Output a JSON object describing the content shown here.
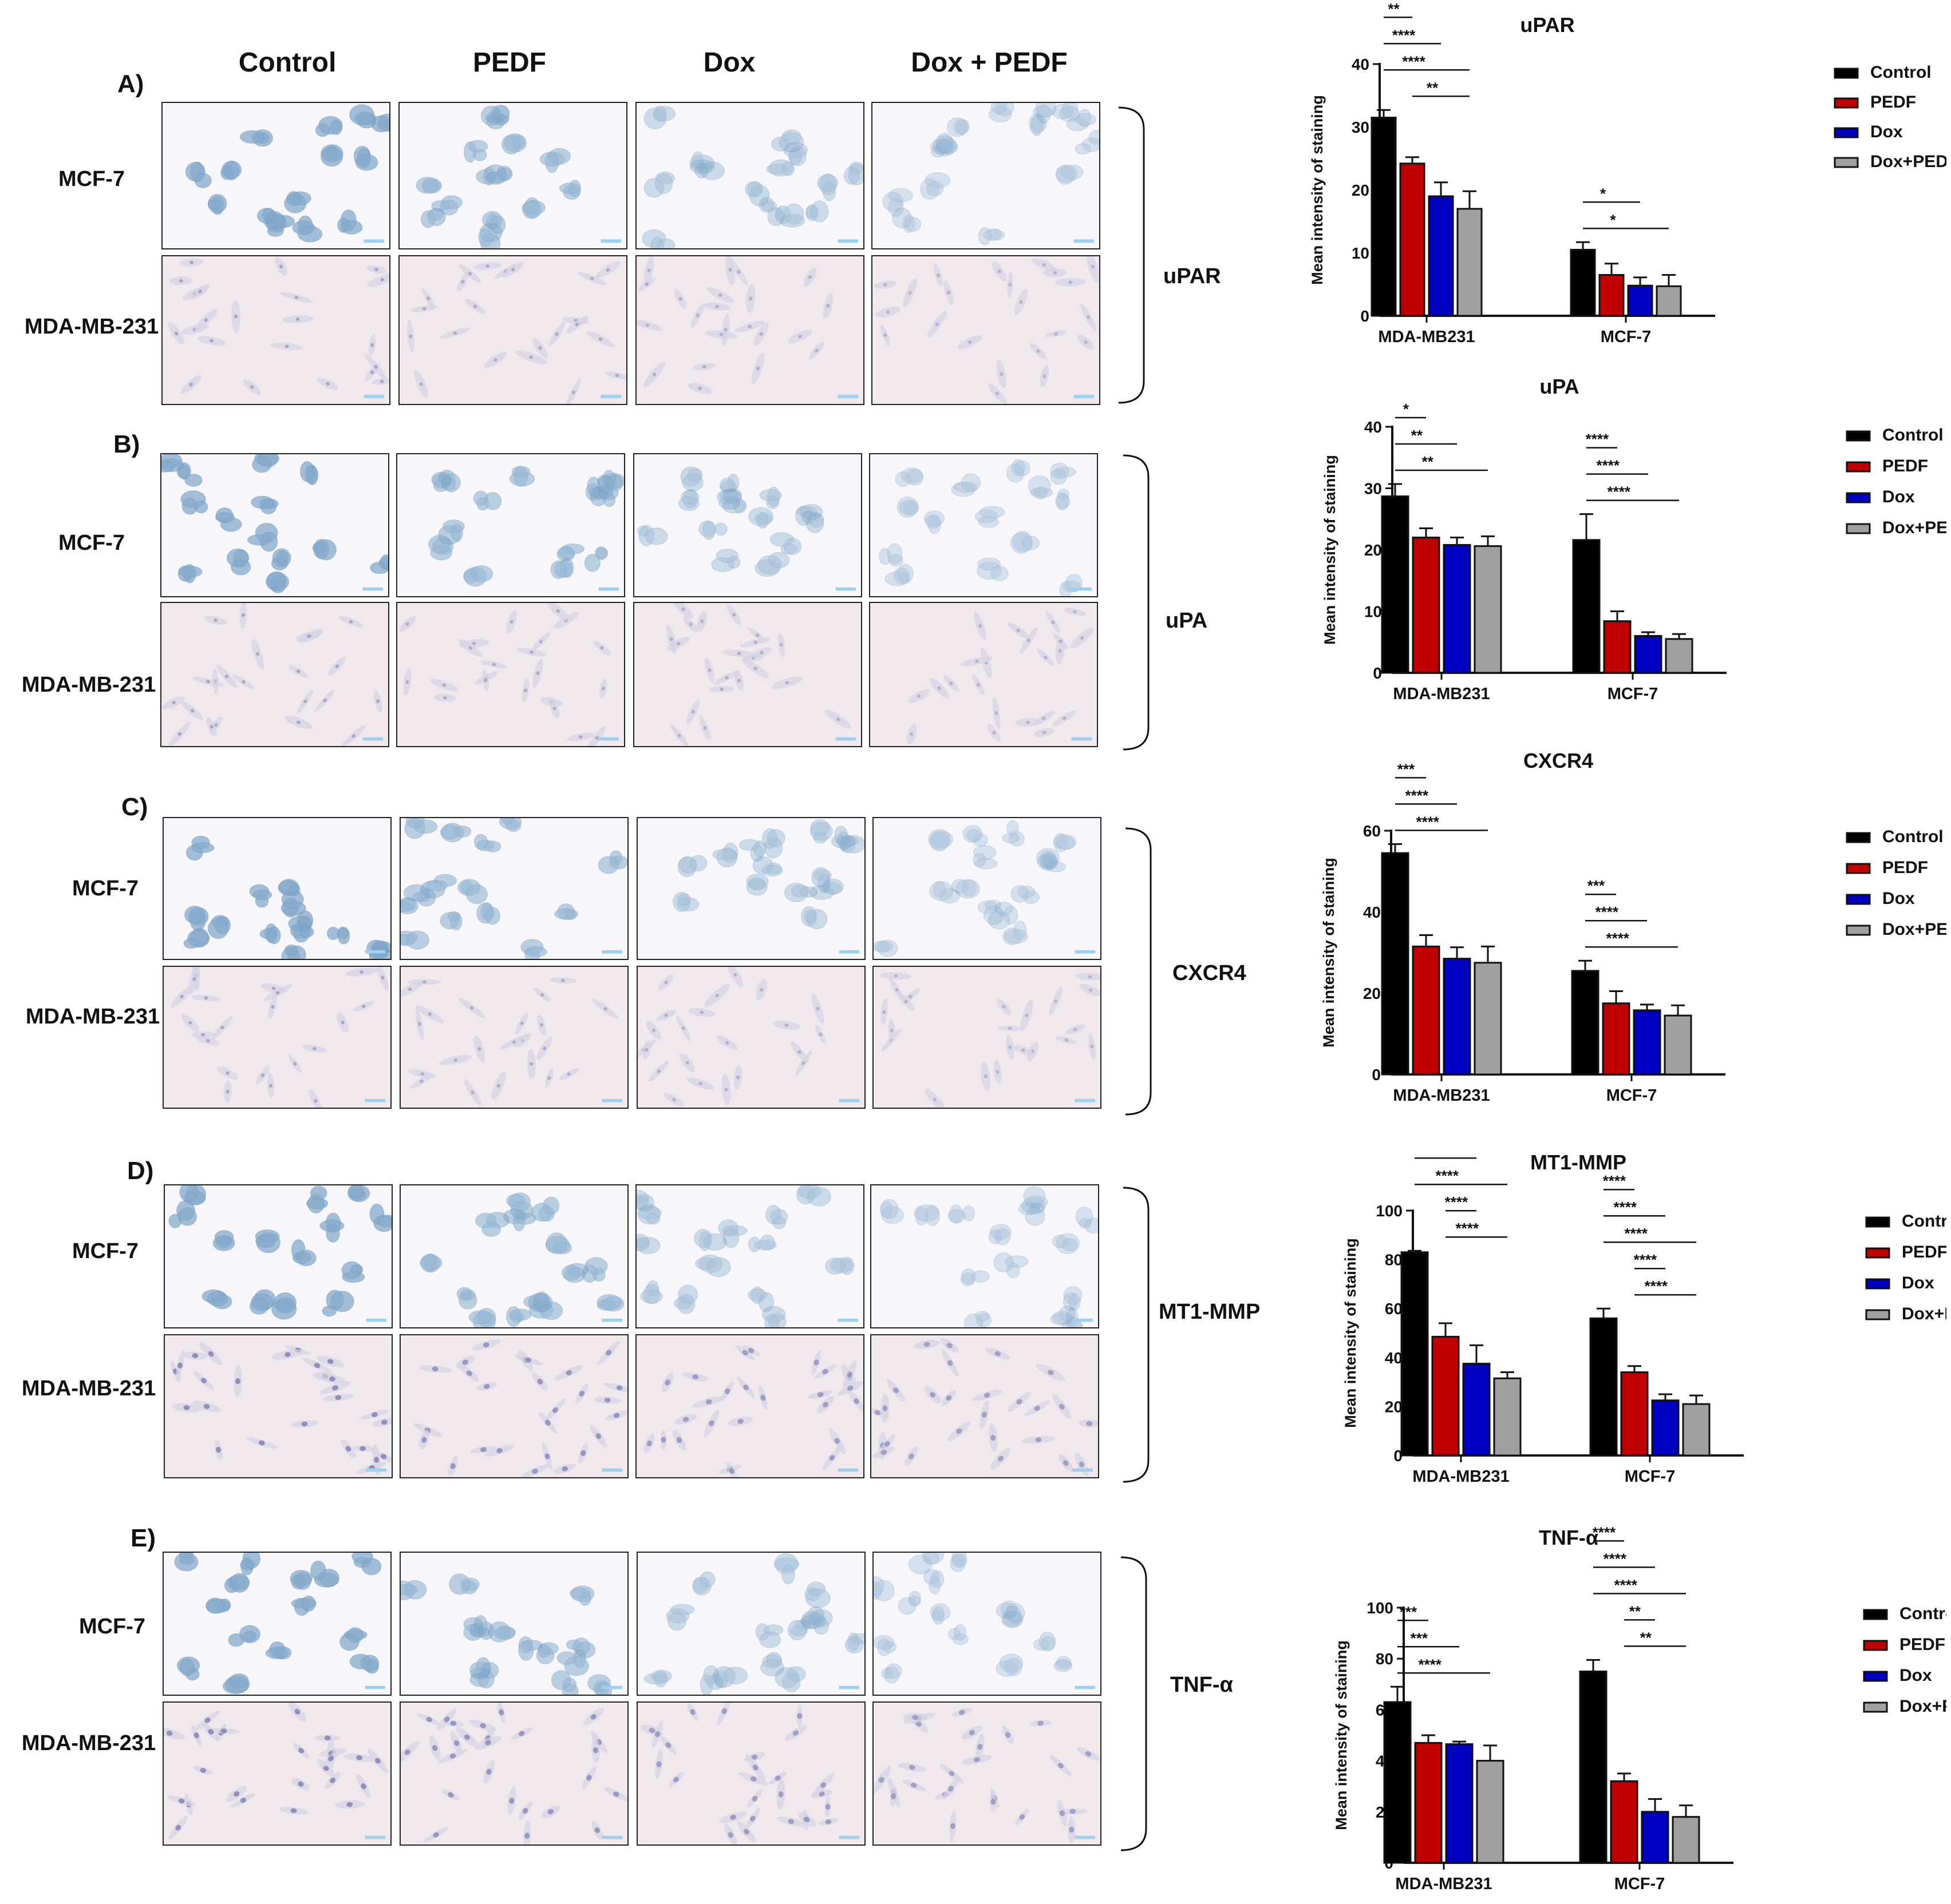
{
  "figure": {
    "column_headers": [
      "Control",
      "PEDF",
      "Dox",
      "Dox + PEDF"
    ],
    "panels": [
      {
        "letter": "A)",
        "marker": "uPAR",
        "rows": [
          "MCF-7",
          "MDA-MB-231"
        ]
      },
      {
        "letter": "B)",
        "marker": "uPA",
        "rows": [
          "MCF-7",
          "MDA-MB-231"
        ]
      },
      {
        "letter": "C)",
        "marker": "CXCR4",
        "rows": [
          "MCF-7",
          "MDA-MB-231"
        ]
      },
      {
        "letter": "D)",
        "marker": "MT1-MMP",
        "rows": [
          "MCF-7",
          "MDA-MB-231"
        ]
      },
      {
        "letter": "E)",
        "marker": "TNF-α",
        "rows": [
          "MCF-7",
          "MDA-MB-231"
        ]
      }
    ],
    "colors": {
      "control": "#000000",
      "pedf": "#c00000",
      "dox": "#0000c0",
      "doxpedf": "#a0a0a0",
      "mcf7_stain": "#7fa6c9",
      "mda_bg": "#f1e8ee",
      "mda_cell": "#8a8cb8"
    }
  },
  "chart_data": [
    {
      "type": "bar",
      "title": "uPAR",
      "ylabel": "Mean intensity of staining",
      "xlabel": "",
      "categories": [
        "MDA-MB231",
        "MCF-7"
      ],
      "ylim": [
        0,
        40
      ],
      "yticks": [
        0,
        10,
        20,
        30,
        40
      ],
      "legend": [
        "Control",
        "PEDF",
        "Dox",
        "Dox+PEDF"
      ],
      "legend_position": "right",
      "series": [
        {
          "name": "Control",
          "values": [
            31.5,
            10.5
          ],
          "errors": [
            1.2,
            1.2
          ]
        },
        {
          "name": "PEDF",
          "values": [
            24.2,
            6.5
          ],
          "errors": [
            1.0,
            1.8
          ]
        },
        {
          "name": "Dox",
          "values": [
            19.0,
            4.8
          ],
          "errors": [
            2.2,
            1.3
          ]
        },
        {
          "name": "Dox+PEDF",
          "values": [
            17.0,
            4.7
          ],
          "errors": [
            2.8,
            1.8
          ]
        }
      ],
      "significance": [
        {
          "group": 0,
          "from": 0,
          "to": 1,
          "label": "**"
        },
        {
          "group": 0,
          "from": 0,
          "to": 2,
          "label": "****"
        },
        {
          "group": 0,
          "from": 0,
          "to": 3,
          "label": "****"
        },
        {
          "group": 0,
          "from": 1,
          "to": 3,
          "label": "**"
        },
        {
          "group": 1,
          "from": 0,
          "to": 2,
          "label": "*"
        },
        {
          "group": 1,
          "from": 0,
          "to": 3,
          "label": "*"
        }
      ]
    },
    {
      "type": "bar",
      "title": "uPA",
      "ylabel": "Mean intensity of staining",
      "xlabel": "",
      "categories": [
        "MDA-MB231",
        "MCF-7"
      ],
      "ylim": [
        0,
        40
      ],
      "yticks": [
        0,
        10,
        20,
        30,
        40
      ],
      "legend": [
        "Control",
        "PEDF",
        "Dox",
        "Dox+PEDF"
      ],
      "legend_position": "right",
      "series": [
        {
          "name": "Control",
          "values": [
            28.7,
            21.6
          ],
          "errors": [
            2.0,
            4.2
          ]
        },
        {
          "name": "PEDF",
          "values": [
            22.0,
            8.4
          ],
          "errors": [
            1.5,
            1.6
          ]
        },
        {
          "name": "Dox",
          "values": [
            20.8,
            6.0
          ],
          "errors": [
            1.2,
            0.6
          ]
        },
        {
          "name": "Dox+PEDF",
          "values": [
            20.6,
            5.5
          ],
          "errors": [
            1.6,
            0.8
          ]
        }
      ],
      "significance": [
        {
          "group": 0,
          "from": 0,
          "to": 1,
          "label": "*"
        },
        {
          "group": 0,
          "from": 0,
          "to": 2,
          "label": "**"
        },
        {
          "group": 0,
          "from": 0,
          "to": 3,
          "label": "**"
        },
        {
          "group": 1,
          "from": 0,
          "to": 1,
          "label": "****"
        },
        {
          "group": 1,
          "from": 0,
          "to": 2,
          "label": "****"
        },
        {
          "group": 1,
          "from": 0,
          "to": 3,
          "label": "****"
        }
      ]
    },
    {
      "type": "bar",
      "title": "CXCR4",
      "ylabel": "Mean intensity of staining",
      "xlabel": "",
      "categories": [
        "MDA-MB231",
        "MCF-7"
      ],
      "ylim": [
        0,
        60
      ],
      "yticks": [
        0,
        20,
        40,
        60
      ],
      "legend": [
        "Control",
        "PEDF",
        "Dox",
        "Dox+PEDF"
      ],
      "legend_position": "right",
      "series": [
        {
          "name": "Control",
          "values": [
            54.5,
            25.5
          ],
          "errors": [
            2.2,
            2.5
          ]
        },
        {
          "name": "PEDF",
          "values": [
            31.5,
            17.5
          ],
          "errors": [
            2.8,
            3.0
          ]
        },
        {
          "name": "Dox",
          "values": [
            28.5,
            15.8
          ],
          "errors": [
            2.8,
            1.4
          ]
        },
        {
          "name": "Dox+PEDF",
          "values": [
            27.5,
            14.5
          ],
          "errors": [
            4.0,
            2.5
          ]
        }
      ],
      "significance": [
        {
          "group": 0,
          "from": 0,
          "to": 1,
          "label": "***"
        },
        {
          "group": 0,
          "from": 0,
          "to": 2,
          "label": "****"
        },
        {
          "group": 0,
          "from": 0,
          "to": 3,
          "label": "****"
        },
        {
          "group": 1,
          "from": 0,
          "to": 1,
          "label": "***"
        },
        {
          "group": 1,
          "from": 0,
          "to": 2,
          "label": "****"
        },
        {
          "group": 1,
          "from": 0,
          "to": 3,
          "label": "****"
        }
      ]
    },
    {
      "type": "bar",
      "title": "MT1-MMP",
      "ylabel": "Mean intensity of staining",
      "xlabel": "",
      "categories": [
        "MDA-MB231",
        "MCF-7"
      ],
      "ylim": [
        0,
        100
      ],
      "yticks": [
        0,
        20,
        40,
        60,
        80,
        100
      ],
      "legend": [
        "Control",
        "PEDF",
        "Dox",
        "Dox+PEDF"
      ],
      "legend_position": "right",
      "series": [
        {
          "name": "Control",
          "values": [
            83.0,
            56.0
          ],
          "errors": [
            0.6,
            4.0
          ]
        },
        {
          "name": "PEDF",
          "values": [
            48.5,
            34.0
          ],
          "errors": [
            5.5,
            2.5
          ]
        },
        {
          "name": "Dox",
          "values": [
            37.5,
            22.5
          ],
          "errors": [
            7.5,
            2.5
          ]
        },
        {
          "name": "Dox+PEDF",
          "values": [
            31.5,
            21.0
          ],
          "errors": [
            2.5,
            3.5
          ]
        }
      ],
      "significance": [
        {
          "group": 0,
          "from": 0,
          "to": 1,
          "label": "****"
        },
        {
          "group": 0,
          "from": 0,
          "to": 2,
          "label": "****"
        },
        {
          "group": 0,
          "from": 0,
          "to": 3,
          "label": "****"
        },
        {
          "group": 0,
          "from": 1,
          "to": 2,
          "label": "****"
        },
        {
          "group": 0,
          "from": 1,
          "to": 3,
          "label": "****"
        },
        {
          "group": 1,
          "from": 0,
          "to": 1,
          "label": "****"
        },
        {
          "group": 1,
          "from": 0,
          "to": 2,
          "label": "****"
        },
        {
          "group": 1,
          "from": 0,
          "to": 3,
          "label": "****"
        },
        {
          "group": 1,
          "from": 1,
          "to": 2,
          "label": "****"
        },
        {
          "group": 1,
          "from": 1,
          "to": 3,
          "label": "****"
        }
      ]
    },
    {
      "type": "bar",
      "title": "TNF-α",
      "ylabel": "Mean intensity of staining",
      "xlabel": "",
      "categories": [
        "MDA-MB231",
        "MCF-7"
      ],
      "ylim": [
        0,
        100
      ],
      "yticks": [
        0,
        20,
        40,
        60,
        80,
        100
      ],
      "legend": [
        "Control",
        "PEDF",
        "Dox",
        "Dox+PEDF"
      ],
      "legend_position": "right",
      "series": [
        {
          "name": "Control",
          "values": [
            63.0,
            75.0
          ],
          "errors": [
            6.0,
            4.5
          ]
        },
        {
          "name": "PEDF",
          "values": [
            47.0,
            32.0
          ],
          "errors": [
            3.0,
            3.0
          ]
        },
        {
          "name": "Dox",
          "values": [
            46.5,
            20.0
          ],
          "errors": [
            1.0,
            5.0
          ]
        },
        {
          "name": "Dox+PEDF",
          "values": [
            40.0,
            18.0
          ],
          "errors": [
            6.0,
            4.5
          ]
        }
      ],
      "significance": [
        {
          "group": 0,
          "from": 0,
          "to": 1,
          "label": "***"
        },
        {
          "group": 0,
          "from": 0,
          "to": 2,
          "label": "***"
        },
        {
          "group": 0,
          "from": 0,
          "to": 3,
          "label": "****"
        },
        {
          "group": 1,
          "from": 0,
          "to": 1,
          "label": "****"
        },
        {
          "group": 1,
          "from": 0,
          "to": 2,
          "label": "****"
        },
        {
          "group": 1,
          "from": 0,
          "to": 3,
          "label": "****"
        },
        {
          "group": 1,
          "from": 1,
          "to": 2,
          "label": "**"
        },
        {
          "group": 1,
          "from": 1,
          "to": 3,
          "label": "**"
        }
      ]
    }
  ]
}
